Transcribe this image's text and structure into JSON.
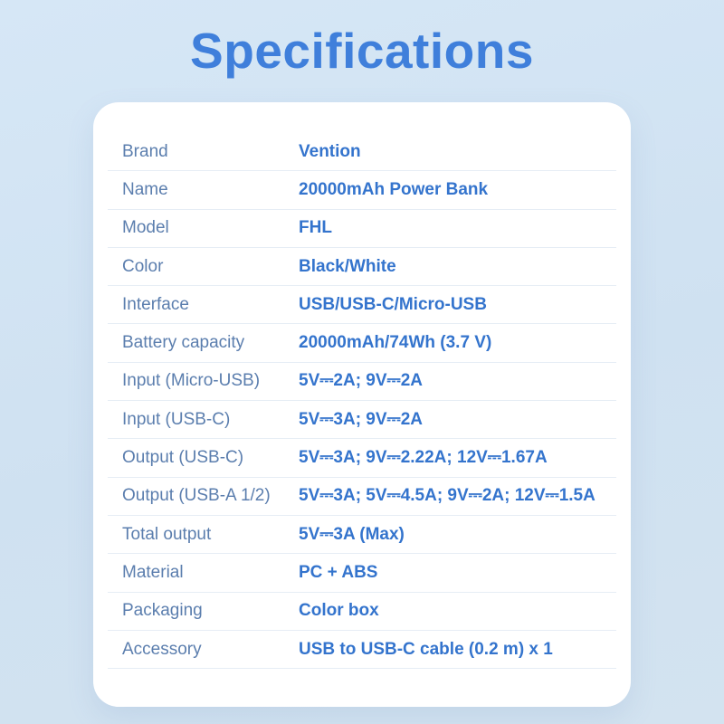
{
  "page_title": "Specifications",
  "colors": {
    "background_top": "#d6e7f6",
    "background_bottom": "#cfe1f1",
    "card": "#ffffff",
    "title_text": "#3f7fdb",
    "label_text": "#5b7eae",
    "value_text": "#3474cd",
    "divider": "#e6edf5"
  },
  "specs": {
    "rows": [
      {
        "label": "Brand",
        "value": "Vention"
      },
      {
        "label": "Name",
        "value": "20000mAh Power Bank"
      },
      {
        "label": "Model",
        "value": "FHL"
      },
      {
        "label": "Color",
        "value": "Black/White"
      },
      {
        "label": "Interface",
        "value": "USB/USB-C/Micro-USB"
      },
      {
        "label": "Battery capacity",
        "value": "20000mAh/74Wh (3.7 V)"
      },
      {
        "label": "Input (Micro-USB)",
        "value": "5V⎓2A; 9V⎓2A"
      },
      {
        "label": "Input (USB-C)",
        "value": "5V⎓3A; 9V⎓2A"
      },
      {
        "label": "Output (USB-C)",
        "value": "5V⎓3A; 9V⎓2.22A; 12V⎓1.67A"
      },
      {
        "label": "Output (USB-A 1/2)",
        "value": "5V⎓3A; 5V⎓4.5A; 9V⎓2A; 12V⎓1.5A"
      },
      {
        "label": "Total output",
        "value": "5V⎓3A (Max)"
      },
      {
        "label": "Material",
        "value": "PC + ABS"
      },
      {
        "label": "Packaging",
        "value": "Color box"
      },
      {
        "label": "Accessory",
        "value": "USB to USB-C cable (0.2 m) x 1"
      }
    ]
  }
}
